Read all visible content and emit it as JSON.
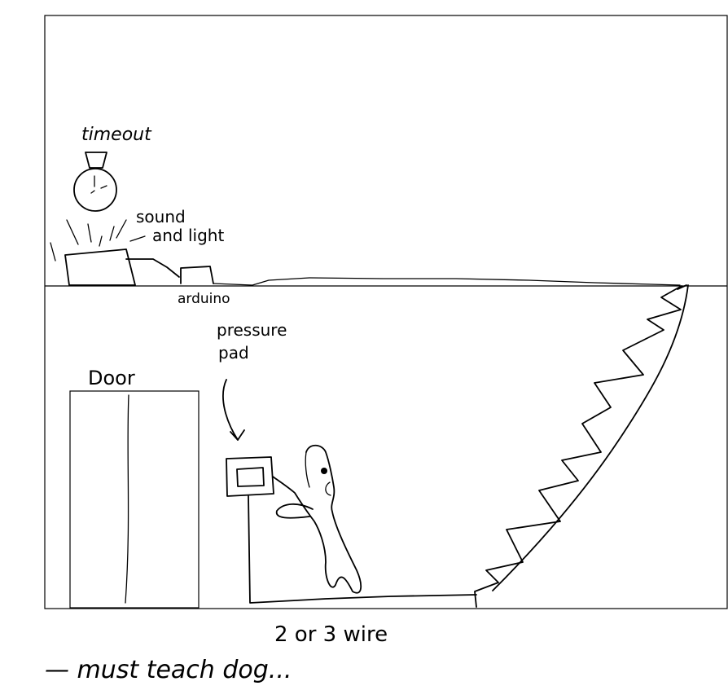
{
  "labels": {
    "timeout": "timeout",
    "sound": "sound",
    "and_light": "and light",
    "arduino": "arduino",
    "pressure": "pressure",
    "pad": "pad",
    "door": "Door",
    "wire": "2 or 3 wire",
    "note": "— must teach dog..."
  },
  "colors": {
    "ink": "#000000",
    "background": "#ffffff"
  }
}
